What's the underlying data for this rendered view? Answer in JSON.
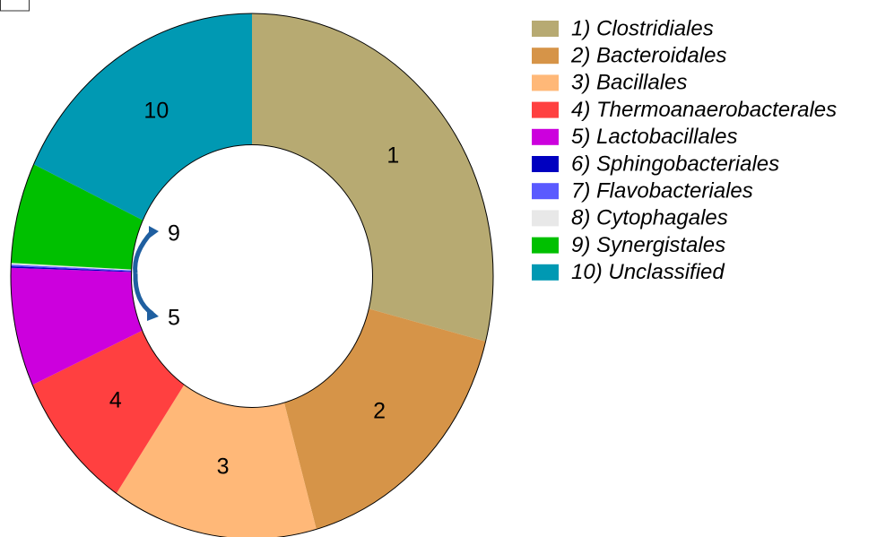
{
  "chart_data": {
    "type": "donut",
    "categories": [
      "1) Clostridiales",
      "2) Bacteroidales",
      "3) Bacillales",
      "4) Thermoanaerobacterales",
      "5) Lactobacillales",
      "6) Sphingobacteriales",
      "7) Flavobacteriales",
      "8) Cytophagales",
      "9) Synergistales",
      "10) Unclassified"
    ],
    "values": [
      29,
      16.7,
      13.8,
      8.7,
      7.3,
      0.1,
      0.1,
      0.1,
      6.2,
      18
    ],
    "colors": [
      "#b7aa72",
      "#d69448",
      "#ffb878",
      "#ff4040",
      "#cc00dd",
      "#0000c0",
      "#5a5aff",
      "#e8e8e8",
      "#00c000",
      "#0099b3"
    ],
    "slice_labels": [
      "1",
      "2",
      "3",
      "4",
      "5",
      null,
      null,
      null,
      "9",
      "10"
    ],
    "legend": "right"
  }
}
